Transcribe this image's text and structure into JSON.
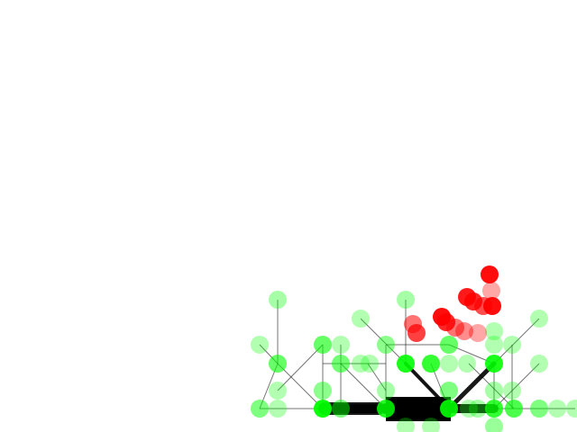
{
  "scene": {
    "background": "#ffffff",
    "node_color": "#00ff00",
    "link_color": "#000000",
    "particle_color": "#ff0000",
    "body_color": "#000000",
    "icons": {
      "node": "circle",
      "particle": "circle",
      "body": "rectangle"
    }
  }
}
